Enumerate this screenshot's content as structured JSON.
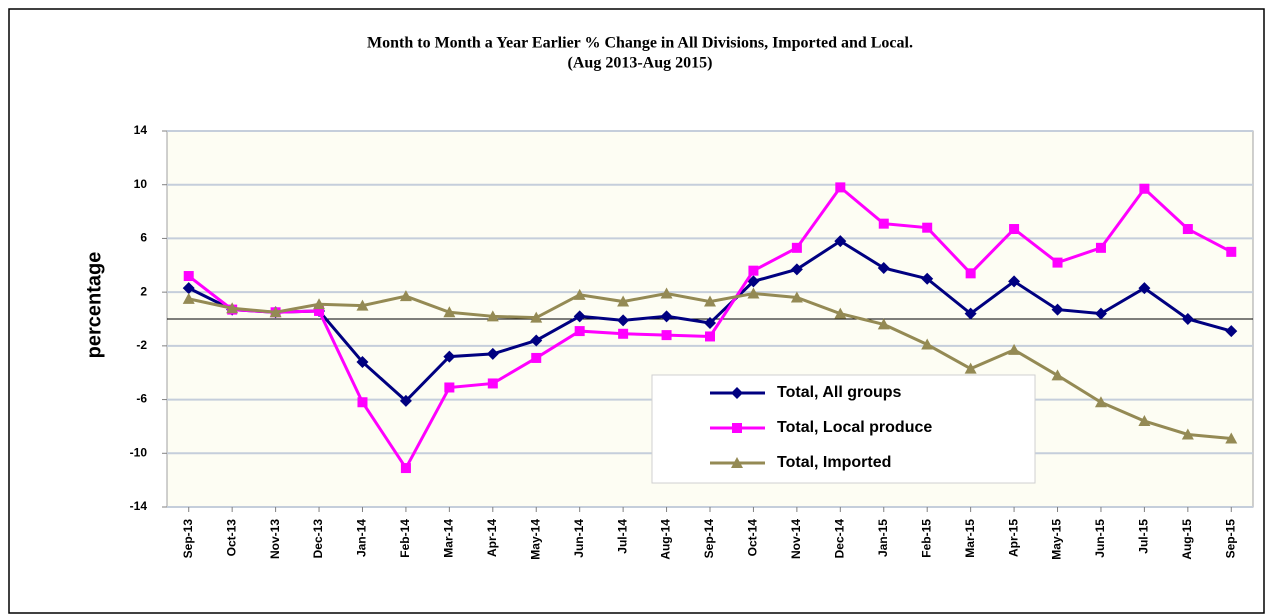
{
  "chart_data": {
    "type": "line",
    "title": "Month to Month a Year Earlier % Change in All Divisions, Imported and Local.",
    "subtitle": "(Aug 2013-Aug 2015)",
    "y_label": "percentage",
    "categories": [
      "Sep-13",
      "Oct-13",
      "Nov-13",
      "Dec-13",
      "Jan-14",
      "Feb-14",
      "Mar-14",
      "Apr-14",
      "May-14",
      "Jun-14",
      "Jul-14",
      "Aug-14",
      "Sep-14",
      "Oct-14",
      "Nov-14",
      "Dec-14",
      "Jan-15",
      "Feb-15",
      "Mar-15",
      "Apr-15",
      "May-15",
      "Jun-15",
      "Jul-15",
      "Aug-15",
      "Sep-15"
    ],
    "series": [
      {
        "name": "Total, All groups",
        "color": "#000080",
        "marker": "diamond",
        "values": [
          2.3,
          0.7,
          0.5,
          0.6,
          -3.2,
          -6.1,
          -2.8,
          -2.6,
          -1.6,
          0.2,
          -0.1,
          0.2,
          -0.3,
          2.8,
          3.7,
          5.8,
          3.8,
          3.0,
          0.4,
          2.8,
          0.7,
          0.4,
          2.3,
          0.0,
          -0.9
        ]
      },
      {
        "name": "Total, Local produce",
        "color": "#ff00ff",
        "marker": "square",
        "values": [
          3.2,
          0.7,
          0.5,
          0.6,
          -6.2,
          -11.1,
          -5.1,
          -4.8,
          -2.9,
          -0.9,
          -1.1,
          -1.2,
          -1.3,
          3.6,
          5.3,
          9.8,
          7.1,
          6.8,
          3.4,
          6.7,
          4.2,
          5.3,
          9.7,
          6.7,
          5.0
        ]
      },
      {
        "name": "Total, Imported",
        "color": "#948a54",
        "marker": "triangle",
        "values": [
          1.5,
          0.8,
          0.5,
          1.1,
          1.0,
          1.7,
          0.5,
          0.2,
          0.1,
          1.8,
          1.3,
          1.9,
          1.3,
          1.9,
          1.6,
          0.4,
          -0.4,
          -1.9,
          -3.7,
          -2.3,
          -4.2,
          -6.2,
          -7.6,
          -8.6,
          -8.9
        ]
      }
    ],
    "ylim": [
      -14,
      14
    ],
    "yticks": [
      14,
      10,
      6,
      2,
      -2,
      -6,
      -10,
      -14
    ],
    "grid": true,
    "legend": "lower right"
  }
}
